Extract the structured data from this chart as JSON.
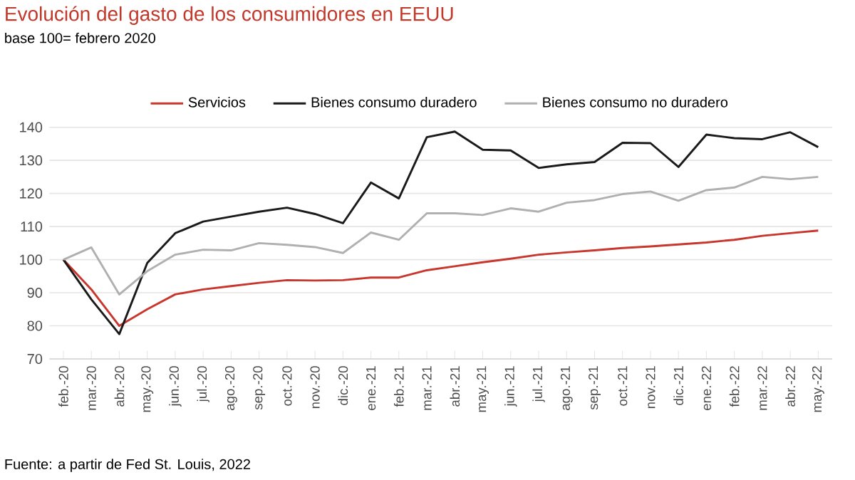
{
  "chart_data": {
    "type": "line",
    "title": "Evolución del gasto de los consumidores en EEUU",
    "subtitle": "base 100= febrero 2020",
    "categories": [
      "feb.-20",
      "mar.-20",
      "abr.-20",
      "may.-20",
      "jun.-20",
      "jul.-20",
      "ago.-20",
      "sep.-20",
      "oct.-20",
      "nov.-20",
      "dic.-20",
      "ene.-21",
      "feb.-21",
      "mar.-21",
      "abr.-21",
      "may.-21",
      "jun.-21",
      "jul.-21",
      "ago.-21",
      "sep.-21",
      "oct.-21",
      "nov.-21",
      "dic.-21",
      "ene.-22",
      "feb.-22",
      "mar.-22",
      "abr.-22",
      "may.-22"
    ],
    "series": [
      {
        "name": "Servicios",
        "color": "#c8372d",
        "values": [
          100,
          91,
          80,
          85,
          89.5,
          91,
          92,
          93,
          93.8,
          93.7,
          93.8,
          94.6,
          94.6,
          96.8,
          98,
          99.2,
          100.3,
          101.5,
          102.2,
          102.8,
          103.5,
          104,
          104.6,
          105.2,
          106,
          107.2,
          108,
          108.8
        ]
      },
      {
        "name": "Bienes consumo duradero",
        "color": "#1a1a1a",
        "values": [
          100,
          88,
          77.5,
          99,
          108,
          111.5,
          113,
          114.5,
          115.7,
          113.8,
          111,
          123.3,
          118.5,
          137,
          138.7,
          133.2,
          133,
          127.7,
          128.8,
          129.5,
          135.3,
          135.2,
          128,
          137.8,
          136.7,
          136.4,
          138.5,
          134
        ]
      },
      {
        "name": "Bienes consumo no duradero",
        "color": "#b0b0b0",
        "values": [
          100,
          103.7,
          89.5,
          96.5,
          101.5,
          103,
          102.8,
          105,
          104.5,
          103.8,
          102,
          108.2,
          106,
          114,
          114,
          113.5,
          115.5,
          114.5,
          117.2,
          118,
          119.8,
          120.6,
          117.8,
          121,
          121.8,
          125,
          124.3,
          125
        ]
      }
    ],
    "ylim": [
      70,
      140
    ],
    "yticks": [
      70,
      80,
      90,
      100,
      110,
      120,
      130,
      140
    ],
    "grid": "y",
    "legend": "top",
    "line_style": "solid",
    "annotations": [
      "Fuente: a partir de Fed St. Louis, 2022"
    ]
  }
}
